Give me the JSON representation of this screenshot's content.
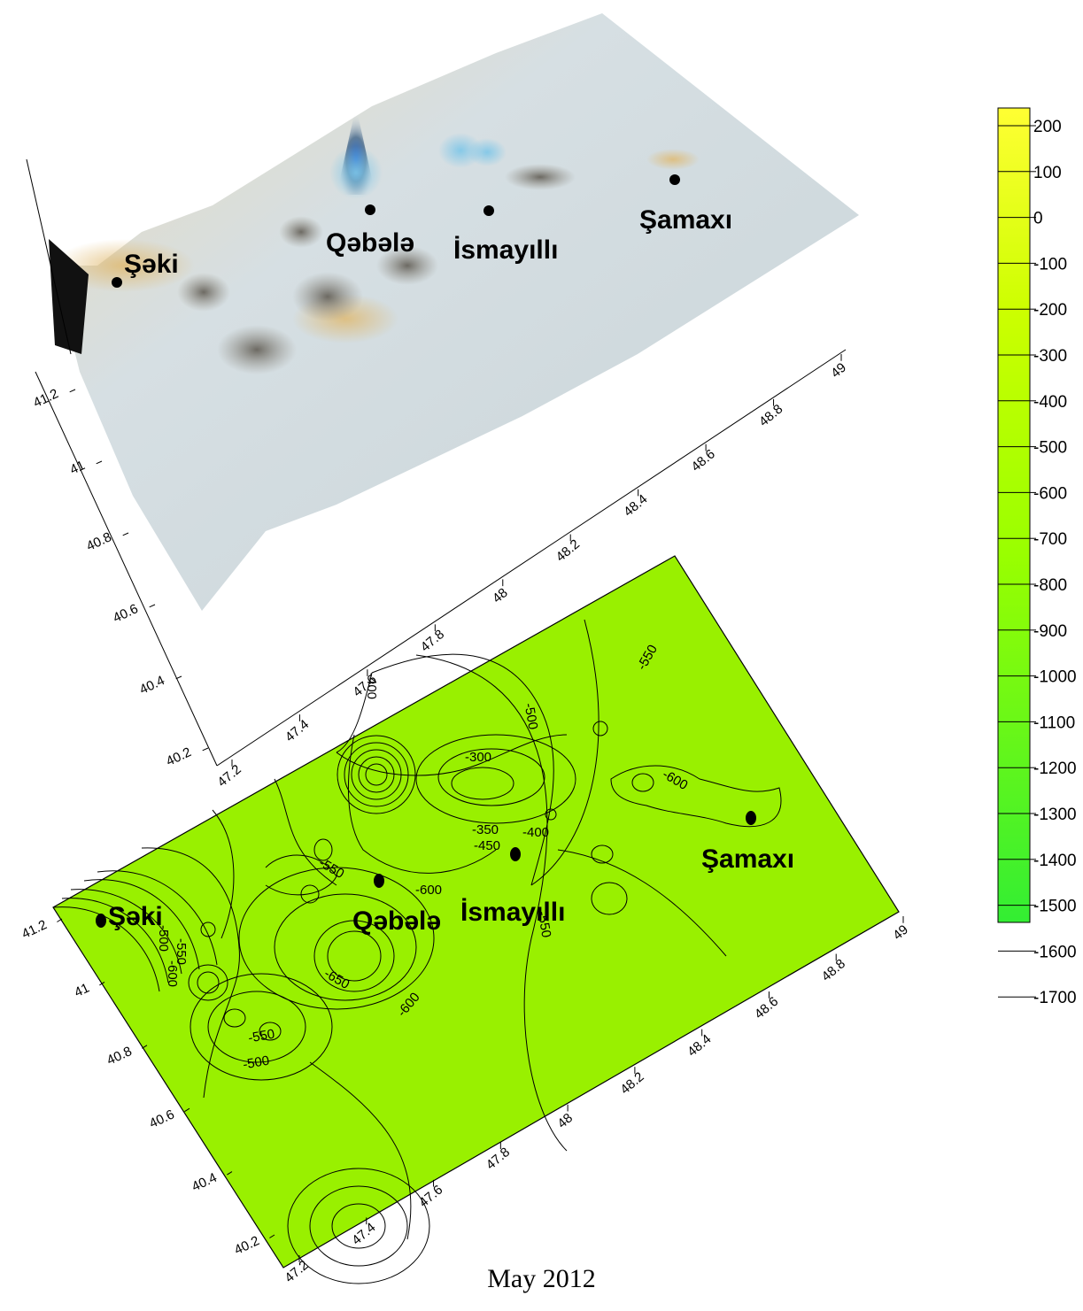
{
  "caption": "May 2012",
  "cities": [
    {
      "name": "Şəki"
    },
    {
      "name": "Qəbələ"
    },
    {
      "name": "İsmayıllı"
    },
    {
      "name": "Şamaxı"
    }
  ],
  "surface_axes": {
    "lat_ticks": [
      "40.2",
      "40.4",
      "40.6",
      "40.8",
      "41",
      "41.2"
    ],
    "lon_ticks": [
      "47.2",
      "47.4",
      "47.6",
      "47.8",
      "48",
      "48.2",
      "48.4",
      "48.6",
      "48.8",
      "49"
    ]
  },
  "contour_axes": {
    "lat_ticks": [
      "40.2",
      "40.4",
      "40.6",
      "40.8",
      "41",
      "41.2"
    ],
    "lon_ticks": [
      "47.2",
      "47.4",
      "47.6",
      "47.8",
      "48",
      "48.2",
      "48.4",
      "48.6",
      "48.8",
      "49"
    ]
  },
  "contour_labels": [
    "-500",
    "-550",
    "-600",
    "-300",
    "-350",
    "-400",
    "-450",
    "-400",
    "-550",
    "-600",
    "-650",
    "-550",
    "-600",
    "-500",
    "-550",
    "-600",
    "-550",
    "-500"
  ],
  "legend": {
    "values": [
      "200",
      "100",
      "0",
      "-100",
      "-200",
      "-300",
      "-400",
      "-500",
      "-600",
      "-700",
      "-800",
      "-900",
      "-1000",
      "-1100",
      "-1200",
      "-1300",
      "-1400",
      "-1500",
      "-1600",
      "-1700"
    ],
    "color_top": "#ffff33",
    "color_mid": "#99ff00",
    "color_bottom": "#33ee33"
  },
  "colors": {
    "map_fill": "#99f000",
    "surface": "#d3dbdf"
  }
}
